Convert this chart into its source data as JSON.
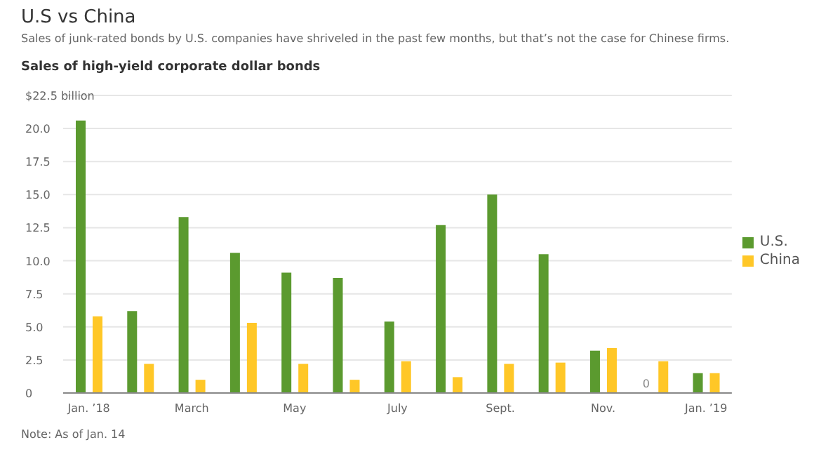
{
  "chart_data": {
    "type": "bar",
    "title": "U.S vs China",
    "subtitle": "Sales of junk-rated bonds by U.S. companies have shriveled in the past few months, but that’s not the case for Chinese firms.",
    "annotations": [
      "Sales of high-yield corporate dollar bonds",
      "Note: As of Jan. 14"
    ],
    "categories": [
      "Jan. ’18",
      null,
      "March",
      null,
      "May",
      null,
      "July",
      null,
      "Sept.",
      null,
      "Nov.",
      null,
      "Jan. ’19"
    ],
    "series": [
      {
        "name": "U.S.",
        "color": "#5b9a2f",
        "values": [
          20.6,
          6.2,
          13.3,
          10.6,
          9.1,
          8.7,
          5.4,
          12.7,
          15.0,
          10.5,
          3.2,
          0,
          1.5
        ],
        "value_labels": [
          null,
          null,
          null,
          null,
          null,
          null,
          null,
          null,
          null,
          null,
          null,
          "0",
          null
        ]
      },
      {
        "name": "China",
        "color": "#ffc727",
        "values": [
          5.8,
          2.2,
          1.0,
          5.3,
          2.2,
          1.0,
          2.4,
          1.2,
          2.2,
          2.3,
          3.4,
          2.4,
          1.5
        ]
      }
    ],
    "ylim": [
      0,
      22.5
    ],
    "yticks": [
      0,
      2.5,
      {
        "value": 5,
        "label": "5.0"
      },
      7.5,
      {
        "value": 10,
        "label": "10.0"
      },
      12.5,
      {
        "value": 15,
        "label": "15.0"
      },
      17.5,
      {
        "value": 20,
        "label": "20.0"
      },
      {
        "value": 22.5,
        "label": "$22.5 billion"
      }
    ],
    "grid": "y",
    "legend": "right"
  }
}
